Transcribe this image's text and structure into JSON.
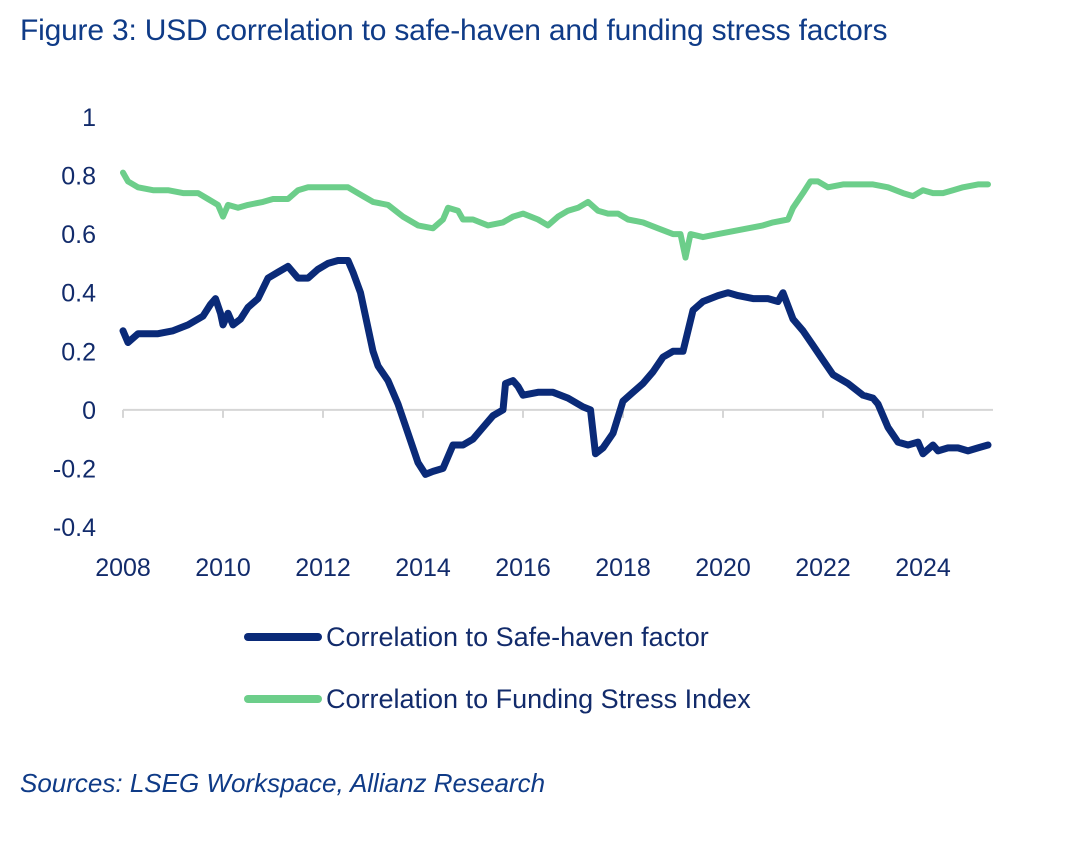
{
  "title": "Figure 3: USD correlation to safe-haven and funding stress factors",
  "source": "Sources: LSEG Workspace, Allianz Research",
  "colors": {
    "safe_haven": "#0a2a78",
    "funding_stress": "#6cce8a",
    "axis": "#d6d6d6",
    "text": "#122b6b"
  },
  "chart_data": {
    "type": "line",
    "title": "Figure 3: USD correlation to safe-haven and funding stress factors",
    "xlabel": "",
    "ylabel": "",
    "xlim": [
      2008,
      2025.4
    ],
    "ylim": [
      -0.4,
      1
    ],
    "x_ticks": [
      2008,
      2010,
      2012,
      2014,
      2016,
      2018,
      2020,
      2022,
      2024
    ],
    "x_tick_labels": [
      "2008",
      "2010",
      "2012",
      "2014",
      "2016",
      "2018",
      "2020",
      "2022",
      "2024"
    ],
    "y_ticks": [
      1,
      0.8,
      0.6,
      0.4,
      0.2,
      0,
      -0.2,
      -0.4
    ],
    "y_tick_labels": [
      "1",
      "0.8",
      "0.6",
      "0.4",
      "0.2",
      "0",
      "-0.2",
      "-0.4"
    ],
    "legend_position": "bottom",
    "grid": false,
    "series": [
      {
        "name": "Correlation to Safe-haven factor",
        "color": "#0a2a78",
        "points": [
          [
            2008.0,
            0.27
          ],
          [
            2008.1,
            0.23
          ],
          [
            2008.3,
            0.26
          ],
          [
            2008.7,
            0.26
          ],
          [
            2009.0,
            0.27
          ],
          [
            2009.3,
            0.29
          ],
          [
            2009.6,
            0.32
          ],
          [
            2009.75,
            0.36
          ],
          [
            2009.85,
            0.38
          ],
          [
            2009.95,
            0.33
          ],
          [
            2010.0,
            0.29
          ],
          [
            2010.1,
            0.33
          ],
          [
            2010.2,
            0.29
          ],
          [
            2010.35,
            0.31
          ],
          [
            2010.5,
            0.35
          ],
          [
            2010.7,
            0.38
          ],
          [
            2010.9,
            0.45
          ],
          [
            2011.1,
            0.47
          ],
          [
            2011.3,
            0.49
          ],
          [
            2011.5,
            0.45
          ],
          [
            2011.7,
            0.45
          ],
          [
            2011.9,
            0.48
          ],
          [
            2012.1,
            0.5
          ],
          [
            2012.3,
            0.51
          ],
          [
            2012.5,
            0.51
          ],
          [
            2012.6,
            0.47
          ],
          [
            2012.75,
            0.4
          ],
          [
            2012.9,
            0.28
          ],
          [
            2013.0,
            0.2
          ],
          [
            2013.1,
            0.15
          ],
          [
            2013.3,
            0.1
          ],
          [
            2013.5,
            0.02
          ],
          [
            2013.7,
            -0.08
          ],
          [
            2013.9,
            -0.18
          ],
          [
            2014.05,
            -0.22
          ],
          [
            2014.2,
            -0.21
          ],
          [
            2014.4,
            -0.2
          ],
          [
            2014.6,
            -0.12
          ],
          [
            2014.8,
            -0.12
          ],
          [
            2015.0,
            -0.1
          ],
          [
            2015.2,
            -0.06
          ],
          [
            2015.4,
            -0.02
          ],
          [
            2015.6,
            0.0
          ],
          [
            2015.65,
            0.09
          ],
          [
            2015.8,
            0.1
          ],
          [
            2015.9,
            0.08
          ],
          [
            2016.0,
            0.05
          ],
          [
            2016.3,
            0.06
          ],
          [
            2016.6,
            0.06
          ],
          [
            2016.9,
            0.04
          ],
          [
            2017.2,
            0.01
          ],
          [
            2017.35,
            0.0
          ],
          [
            2017.45,
            -0.15
          ],
          [
            2017.6,
            -0.13
          ],
          [
            2017.8,
            -0.08
          ],
          [
            2018.0,
            0.03
          ],
          [
            2018.2,
            0.06
          ],
          [
            2018.4,
            0.09
          ],
          [
            2018.6,
            0.13
          ],
          [
            2018.8,
            0.18
          ],
          [
            2019.0,
            0.2
          ],
          [
            2019.2,
            0.2
          ],
          [
            2019.4,
            0.34
          ],
          [
            2019.6,
            0.37
          ],
          [
            2019.9,
            0.39
          ],
          [
            2020.1,
            0.4
          ],
          [
            2020.3,
            0.39
          ],
          [
            2020.6,
            0.38
          ],
          [
            2020.9,
            0.38
          ],
          [
            2021.1,
            0.37
          ],
          [
            2021.2,
            0.4
          ],
          [
            2021.4,
            0.31
          ],
          [
            2021.6,
            0.27
          ],
          [
            2021.8,
            0.22
          ],
          [
            2022.0,
            0.17
          ],
          [
            2022.2,
            0.12
          ],
          [
            2022.5,
            0.09
          ],
          [
            2022.8,
            0.05
          ],
          [
            2023.0,
            0.04
          ],
          [
            2023.1,
            0.02
          ],
          [
            2023.3,
            -0.06
          ],
          [
            2023.5,
            -0.11
          ],
          [
            2023.7,
            -0.12
          ],
          [
            2023.9,
            -0.11
          ],
          [
            2024.0,
            -0.15
          ],
          [
            2024.2,
            -0.12
          ],
          [
            2024.3,
            -0.14
          ],
          [
            2024.5,
            -0.13
          ],
          [
            2024.7,
            -0.13
          ],
          [
            2024.9,
            -0.14
          ],
          [
            2025.1,
            -0.13
          ],
          [
            2025.3,
            -0.12
          ]
        ]
      },
      {
        "name": "Correlation to Funding Stress Index",
        "color": "#6cce8a",
        "points": [
          [
            2008.0,
            0.81
          ],
          [
            2008.1,
            0.78
          ],
          [
            2008.3,
            0.76
          ],
          [
            2008.6,
            0.75
          ],
          [
            2008.9,
            0.75
          ],
          [
            2009.2,
            0.74
          ],
          [
            2009.5,
            0.74
          ],
          [
            2009.7,
            0.72
          ],
          [
            2009.9,
            0.7
          ],
          [
            2010.0,
            0.66
          ],
          [
            2010.1,
            0.7
          ],
          [
            2010.3,
            0.69
          ],
          [
            2010.5,
            0.7
          ],
          [
            2010.8,
            0.71
          ],
          [
            2011.0,
            0.72
          ],
          [
            2011.3,
            0.72
          ],
          [
            2011.5,
            0.75
          ],
          [
            2011.7,
            0.76
          ],
          [
            2012.0,
            0.76
          ],
          [
            2012.3,
            0.76
          ],
          [
            2012.5,
            0.76
          ],
          [
            2012.8,
            0.73
          ],
          [
            2013.0,
            0.71
          ],
          [
            2013.3,
            0.7
          ],
          [
            2013.6,
            0.66
          ],
          [
            2013.9,
            0.63
          ],
          [
            2014.2,
            0.62
          ],
          [
            2014.4,
            0.65
          ],
          [
            2014.5,
            0.69
          ],
          [
            2014.7,
            0.68
          ],
          [
            2014.8,
            0.65
          ],
          [
            2015.0,
            0.65
          ],
          [
            2015.3,
            0.63
          ],
          [
            2015.6,
            0.64
          ],
          [
            2015.8,
            0.66
          ],
          [
            2016.0,
            0.67
          ],
          [
            2016.3,
            0.65
          ],
          [
            2016.5,
            0.63
          ],
          [
            2016.7,
            0.66
          ],
          [
            2016.9,
            0.68
          ],
          [
            2017.1,
            0.69
          ],
          [
            2017.3,
            0.71
          ],
          [
            2017.5,
            0.68
          ],
          [
            2017.7,
            0.67
          ],
          [
            2017.9,
            0.67
          ],
          [
            2018.1,
            0.65
          ],
          [
            2018.4,
            0.64
          ],
          [
            2018.7,
            0.62
          ],
          [
            2019.0,
            0.6
          ],
          [
            2019.15,
            0.6
          ],
          [
            2019.25,
            0.52
          ],
          [
            2019.35,
            0.6
          ],
          [
            2019.6,
            0.59
          ],
          [
            2019.9,
            0.6
          ],
          [
            2020.2,
            0.61
          ],
          [
            2020.5,
            0.62
          ],
          [
            2020.8,
            0.63
          ],
          [
            2021.0,
            0.64
          ],
          [
            2021.3,
            0.65
          ],
          [
            2021.4,
            0.69
          ],
          [
            2021.6,
            0.74
          ],
          [
            2021.75,
            0.78
          ],
          [
            2021.9,
            0.78
          ],
          [
            2022.1,
            0.76
          ],
          [
            2022.4,
            0.77
          ],
          [
            2022.7,
            0.77
          ],
          [
            2023.0,
            0.77
          ],
          [
            2023.3,
            0.76
          ],
          [
            2023.6,
            0.74
          ],
          [
            2023.8,
            0.73
          ],
          [
            2024.0,
            0.75
          ],
          [
            2024.2,
            0.74
          ],
          [
            2024.4,
            0.74
          ],
          [
            2024.6,
            0.75
          ],
          [
            2024.8,
            0.76
          ],
          [
            2025.1,
            0.77
          ],
          [
            2025.3,
            0.77
          ]
        ]
      }
    ]
  }
}
